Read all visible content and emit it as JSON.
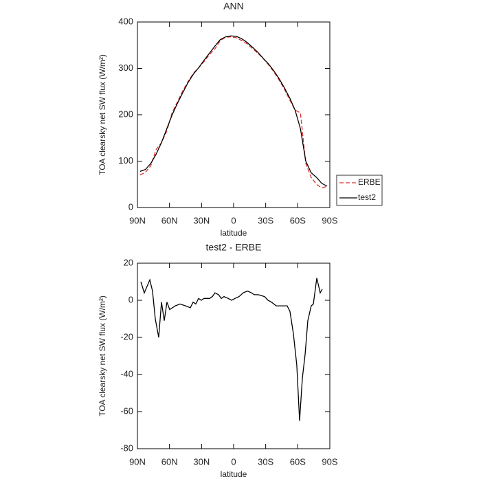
{
  "chart_data": [
    {
      "type": "line",
      "title": "ANN",
      "x_label": "latitude",
      "y_label": "TOA clearsky net SW flux (W/m²)",
      "x": [
        87.5,
        82.5,
        77.5,
        72.5,
        67.5,
        62.5,
        57.5,
        52.5,
        47.5,
        42.5,
        37.5,
        32.5,
        27.5,
        22.5,
        17.5,
        12.5,
        7.5,
        2.5,
        -2.5,
        -7.5,
        -12.5,
        -17.5,
        -22.5,
        -27.5,
        -32.5,
        -37.5,
        -42.5,
        -47.5,
        -52.5,
        -57.5,
        -62.5,
        -67.5,
        -72.5,
        -77.5,
        -82.5,
        -87.5
      ],
      "series": [
        {
          "name": "ERBE",
          "color": "#e0302a",
          "dash": true,
          "values": [
            70,
            76,
            90,
            125,
            140,
            165,
            205,
            228,
            252,
            272,
            290,
            302,
            315,
            330,
            342,
            360,
            367,
            368,
            366,
            360,
            353,
            343,
            333,
            322,
            308,
            293,
            275,
            255,
            232,
            210,
            204,
            95,
            65,
            50,
            42,
            46
          ]
        },
        {
          "name": "test2",
          "color": "#000000",
          "dash": false,
          "values": [
            78,
            82,
            95,
            115,
            140,
            170,
            200,
            225,
            248,
            270,
            288,
            302,
            318,
            333,
            348,
            362,
            368,
            370,
            369,
            364,
            356,
            346,
            335,
            322,
            310,
            295,
            278,
            258,
            236,
            210,
            170,
            100,
            75,
            65,
            52,
            46
          ]
        }
      ],
      "xlim": [
        90,
        -90
      ],
      "xticks": [
        {
          "value": 90,
          "label": "90N"
        },
        {
          "value": 60,
          "label": "60N"
        },
        {
          "value": 30,
          "label": "30N"
        },
        0,
        {
          "value": -30,
          "label": "30S"
        },
        {
          "value": -60,
          "label": "60S"
        },
        {
          "value": -90,
          "label": "90S"
        }
      ],
      "ylim": [
        0,
        400
      ],
      "yticks": [
        0,
        100,
        200,
        300,
        400
      ],
      "legend": "right",
      "grid": false
    },
    {
      "type": "line",
      "title": "test2 - ERBE",
      "x_label": "latitude",
      "y_label": "TOA clearsky net SW flux (W/m²)",
      "x": [
        86.8,
        83.6,
        78.4,
        75.9,
        73.3,
        70.1,
        67.5,
        64.9,
        62.4,
        59.8,
        54.6,
        50.1,
        45,
        40.5,
        37.9,
        35.4,
        32.8,
        30.2,
        27.7,
        22.5,
        19.9,
        17.4,
        14.1,
        11.6,
        9,
        5.1,
        1.9,
        -1.3,
        -5.1,
        -9,
        -12.9,
        -16.7,
        -19.3,
        -23.1,
        -28.9,
        -32.1,
        -35.4,
        -39.9,
        -44.4,
        -50.1,
        -52.7,
        -55.9,
        -59.1,
        -61.7,
        -64.3,
        -66.9,
        -69.4,
        -72.6,
        -74.6,
        -77.8,
        -81,
        -82.9
      ],
      "series": [
        {
          "name": "test2 - ERBE",
          "color": "#000000",
          "dash": false,
          "values": [
            10,
            4,
            11,
            5,
            -10,
            -20,
            -1,
            -11,
            -1,
            -5,
            -3,
            -2,
            -3,
            -4,
            -1,
            -2,
            1,
            0,
            1,
            1,
            2,
            4,
            3,
            1,
            2,
            1,
            0,
            1,
            2,
            4,
            5,
            4,
            3,
            3,
            2,
            0,
            -1,
            -3,
            -3,
            -3,
            -6,
            -18,
            -35,
            -65,
            -42,
            -29,
            -11,
            -3,
            -2,
            12,
            4,
            6
          ]
        }
      ],
      "xlim": [
        90,
        -90
      ],
      "xticks": [
        {
          "value": 90,
          "label": "90N"
        },
        {
          "value": 60,
          "label": "60N"
        },
        {
          "value": 30,
          "label": "30N"
        },
        0,
        {
          "value": -30,
          "label": "30S"
        },
        {
          "value": -60,
          "label": "60S"
        },
        {
          "value": -90,
          "label": "90S"
        }
      ],
      "ylim": [
        -80,
        20
      ],
      "yticks": [
        -80,
        -60,
        -40,
        -20,
        0,
        20
      ],
      "grid": false
    }
  ]
}
